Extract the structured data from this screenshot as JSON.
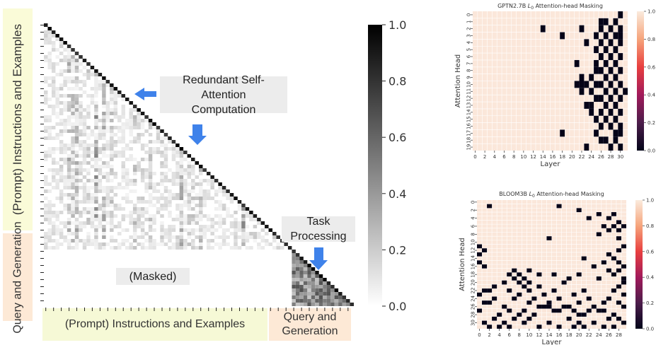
{
  "annotations": {
    "y_instructions": "(Prompt) Instructions and Examples",
    "y_query": "Query and Generation",
    "x_instructions": "(Prompt) Instructions and Examples",
    "x_query": "Query and Generation",
    "redundant": "Redundant Self-Attention Computation",
    "task": "Task Processing",
    "masked": "(Masked)"
  },
  "colors": {
    "yellow_band": "#fafbd8",
    "orange_band": "#fde9d6",
    "arrow_blue": "#3f82ea",
    "gray_box": "#ececec",
    "cell_on": "#fbe7da",
    "cell_off": "#060418"
  },
  "chart_data": [
    {
      "type": "heatmap",
      "title": "",
      "colorbar": {
        "min": 0.0,
        "max": 1.0,
        "ticks": [
          "0.0",
          "0.2",
          "0.4",
          "0.6",
          "0.8",
          "1.0"
        ],
        "colormap": "gray_r"
      },
      "description_masked": "lower-triangular attention matrix; upper triangle masked"
    },
    {
      "type": "heatmap",
      "title": "GPTN2.7B L0 Attention-head Masking",
      "title_main": "GPTN2.7B ",
      "title_sym": "L",
      "title_sub": "0",
      "title_rest": " Attention-head Masking",
      "xlabel": "Layer",
      "ylabel": "Attention Head",
      "n_layers": 32,
      "n_heads": 20,
      "x_ticks": [
        "0",
        "2",
        "4",
        "6",
        "8",
        "10",
        "12",
        "14",
        "16",
        "18",
        "20",
        "22",
        "24",
        "26",
        "28",
        "30"
      ],
      "y_ticks": [
        "0",
        "1",
        "2",
        "3",
        "4",
        "5",
        "6",
        "7",
        "8",
        "9",
        "10",
        "11",
        "12",
        "13",
        "14",
        "15",
        "16",
        "17",
        "18",
        "19"
      ],
      "colorbar": {
        "min": 0.0,
        "max": 1.0,
        "ticks": [
          "0.0",
          "0.2",
          "0.4",
          "0.6",
          "0.8",
          "1.0"
        ]
      },
      "masked_cells": [
        [
          0,
          30
        ],
        [
          1,
          26
        ],
        [
          1,
          27
        ],
        [
          1,
          29
        ],
        [
          2,
          14
        ],
        [
          2,
          22
        ],
        [
          2,
          26
        ],
        [
          2,
          28
        ],
        [
          2,
          30
        ],
        [
          3,
          18
        ],
        [
          3,
          25
        ],
        [
          3,
          27
        ],
        [
          3,
          29
        ],
        [
          3,
          30
        ],
        [
          4,
          23
        ],
        [
          4,
          26
        ],
        [
          4,
          28
        ],
        [
          4,
          30
        ],
        [
          5,
          25
        ],
        [
          5,
          27
        ],
        [
          5,
          29
        ],
        [
          6,
          26
        ],
        [
          6,
          28
        ],
        [
          6,
          30
        ],
        [
          7,
          21
        ],
        [
          7,
          25
        ],
        [
          7,
          27
        ],
        [
          7,
          29
        ],
        [
          8,
          25
        ],
        [
          8,
          26
        ],
        [
          8,
          28
        ],
        [
          8,
          30
        ],
        [
          9,
          22
        ],
        [
          9,
          24
        ],
        [
          9,
          27
        ],
        [
          9,
          29
        ],
        [
          10,
          21
        ],
        [
          10,
          22
        ],
        [
          10,
          23
        ],
        [
          10,
          25
        ],
        [
          10,
          26
        ],
        [
          10,
          28
        ],
        [
          10,
          30
        ],
        [
          11,
          22
        ],
        [
          11,
          24
        ],
        [
          11,
          27
        ],
        [
          11,
          29
        ],
        [
          11,
          31
        ],
        [
          12,
          25
        ],
        [
          12,
          26
        ],
        [
          12,
          28
        ],
        [
          12,
          30
        ],
        [
          13,
          23
        ],
        [
          13,
          24
        ],
        [
          13,
          27
        ],
        [
          13,
          29
        ],
        [
          14,
          24
        ],
        [
          14,
          26
        ],
        [
          14,
          28
        ],
        [
          14,
          30
        ],
        [
          15,
          25
        ],
        [
          15,
          27
        ],
        [
          15,
          29
        ],
        [
          16,
          26
        ],
        [
          16,
          28
        ],
        [
          16,
          30
        ],
        [
          17,
          18
        ],
        [
          17,
          25
        ],
        [
          17,
          29
        ],
        [
          17,
          30
        ],
        [
          18,
          26
        ],
        [
          18,
          27
        ],
        [
          18,
          29
        ],
        [
          19,
          23
        ],
        [
          19,
          28
        ],
        [
          19,
          30
        ]
      ]
    },
    {
      "type": "heatmap",
      "title": "BLOOM3B L0 Attention-head Masking",
      "title_main": "BLOOM3B ",
      "title_sym": "L",
      "title_sub": "0",
      "title_rest": " Attention-head Masking",
      "xlabel": "Layer",
      "ylabel": "Attention Head",
      "n_layers": 30,
      "n_heads": 32,
      "x_ticks": [
        "0",
        "2",
        "4",
        "6",
        "8",
        "10",
        "12",
        "14",
        "16",
        "18",
        "20",
        "22",
        "24",
        "26",
        "28"
      ],
      "y_ticks": [
        "0",
        "2",
        "4",
        "6",
        "8",
        "10",
        "12",
        "14",
        "16",
        "18",
        "20",
        "22",
        "24",
        "26",
        "28",
        "30"
      ],
      "colorbar": {
        "min": 0.0,
        "max": 1.0,
        "ticks": [
          "0.0",
          "0.2",
          "0.4",
          "0.6",
          "0.8",
          "1.0"
        ]
      },
      "masked_cells": [
        [
          1,
          2
        ],
        [
          1,
          16
        ],
        [
          2,
          20
        ],
        [
          3,
          24
        ],
        [
          3,
          27
        ],
        [
          4,
          22
        ],
        [
          4,
          26
        ],
        [
          5,
          28
        ],
        [
          6,
          25
        ],
        [
          6,
          27
        ],
        [
          6,
          29
        ],
        [
          7,
          26
        ],
        [
          7,
          28
        ],
        [
          8,
          24
        ],
        [
          9,
          14
        ],
        [
          9,
          28
        ],
        [
          11,
          0
        ],
        [
          11,
          29
        ],
        [
          12,
          1
        ],
        [
          12,
          28
        ],
        [
          13,
          0
        ],
        [
          13,
          26
        ],
        [
          14,
          21
        ],
        [
          14,
          27
        ],
        [
          15,
          0
        ],
        [
          15,
          25
        ],
        [
          15,
          28
        ],
        [
          16,
          1
        ],
        [
          16,
          23
        ],
        [
          16,
          29
        ],
        [
          17,
          7
        ],
        [
          17,
          10
        ],
        [
          17,
          26
        ],
        [
          17,
          28
        ],
        [
          18,
          6
        ],
        [
          18,
          8
        ],
        [
          18,
          12
        ],
        [
          18,
          15
        ],
        [
          18,
          20
        ],
        [
          18,
          27
        ],
        [
          19,
          7
        ],
        [
          19,
          9
        ],
        [
          19,
          18
        ],
        [
          19,
          24
        ],
        [
          19,
          29
        ],
        [
          20,
          5
        ],
        [
          20,
          8
        ],
        [
          20,
          10
        ],
        [
          20,
          17
        ],
        [
          20,
          29
        ],
        [
          21,
          3
        ],
        [
          21,
          9
        ],
        [
          21,
          12
        ],
        [
          21,
          28
        ],
        [
          22,
          1
        ],
        [
          22,
          2
        ],
        [
          22,
          6
        ],
        [
          22,
          10
        ],
        [
          22,
          15
        ],
        [
          22,
          21
        ],
        [
          22,
          27
        ],
        [
          23,
          0
        ],
        [
          23,
          8
        ],
        [
          23,
          13
        ],
        [
          23,
          19
        ],
        [
          23,
          29
        ],
        [
          24,
          3
        ],
        [
          24,
          7
        ],
        [
          24,
          11
        ],
        [
          24,
          16
        ],
        [
          24,
          22
        ],
        [
          24,
          26
        ],
        [
          25,
          1
        ],
        [
          25,
          2
        ],
        [
          25,
          10
        ],
        [
          25,
          14
        ],
        [
          25,
          20
        ],
        [
          25,
          25
        ],
        [
          25,
          28
        ],
        [
          26,
          5
        ],
        [
          26,
          12
        ],
        [
          26,
          13
        ],
        [
          26,
          14
        ],
        [
          26,
          17
        ],
        [
          26,
          18
        ],
        [
          26,
          23
        ],
        [
          26,
          29
        ],
        [
          27,
          0
        ],
        [
          27,
          6
        ],
        [
          27,
          9
        ],
        [
          27,
          15
        ],
        [
          27,
          16
        ],
        [
          27,
          19
        ],
        [
          27,
          22
        ],
        [
          27,
          24
        ],
        [
          27,
          25
        ],
        [
          28,
          4
        ],
        [
          28,
          8
        ],
        [
          28,
          11
        ],
        [
          28,
          20
        ],
        [
          28,
          21
        ],
        [
          28,
          27
        ],
        [
          29,
          3
        ],
        [
          29,
          7
        ],
        [
          29,
          10
        ],
        [
          29,
          18
        ],
        [
          29,
          26
        ],
        [
          29,
          28
        ],
        [
          30,
          1
        ],
        [
          30,
          5
        ],
        [
          30,
          9
        ],
        [
          30,
          14
        ],
        [
          30,
          20
        ],
        [
          30,
          23
        ],
        [
          30,
          29
        ],
        [
          31,
          2
        ],
        [
          31,
          4
        ],
        [
          31,
          6
        ],
        [
          31,
          12
        ],
        [
          31,
          16
        ],
        [
          31,
          19
        ],
        [
          31,
          21
        ],
        [
          31,
          25
        ],
        [
          31,
          27
        ]
      ]
    }
  ]
}
